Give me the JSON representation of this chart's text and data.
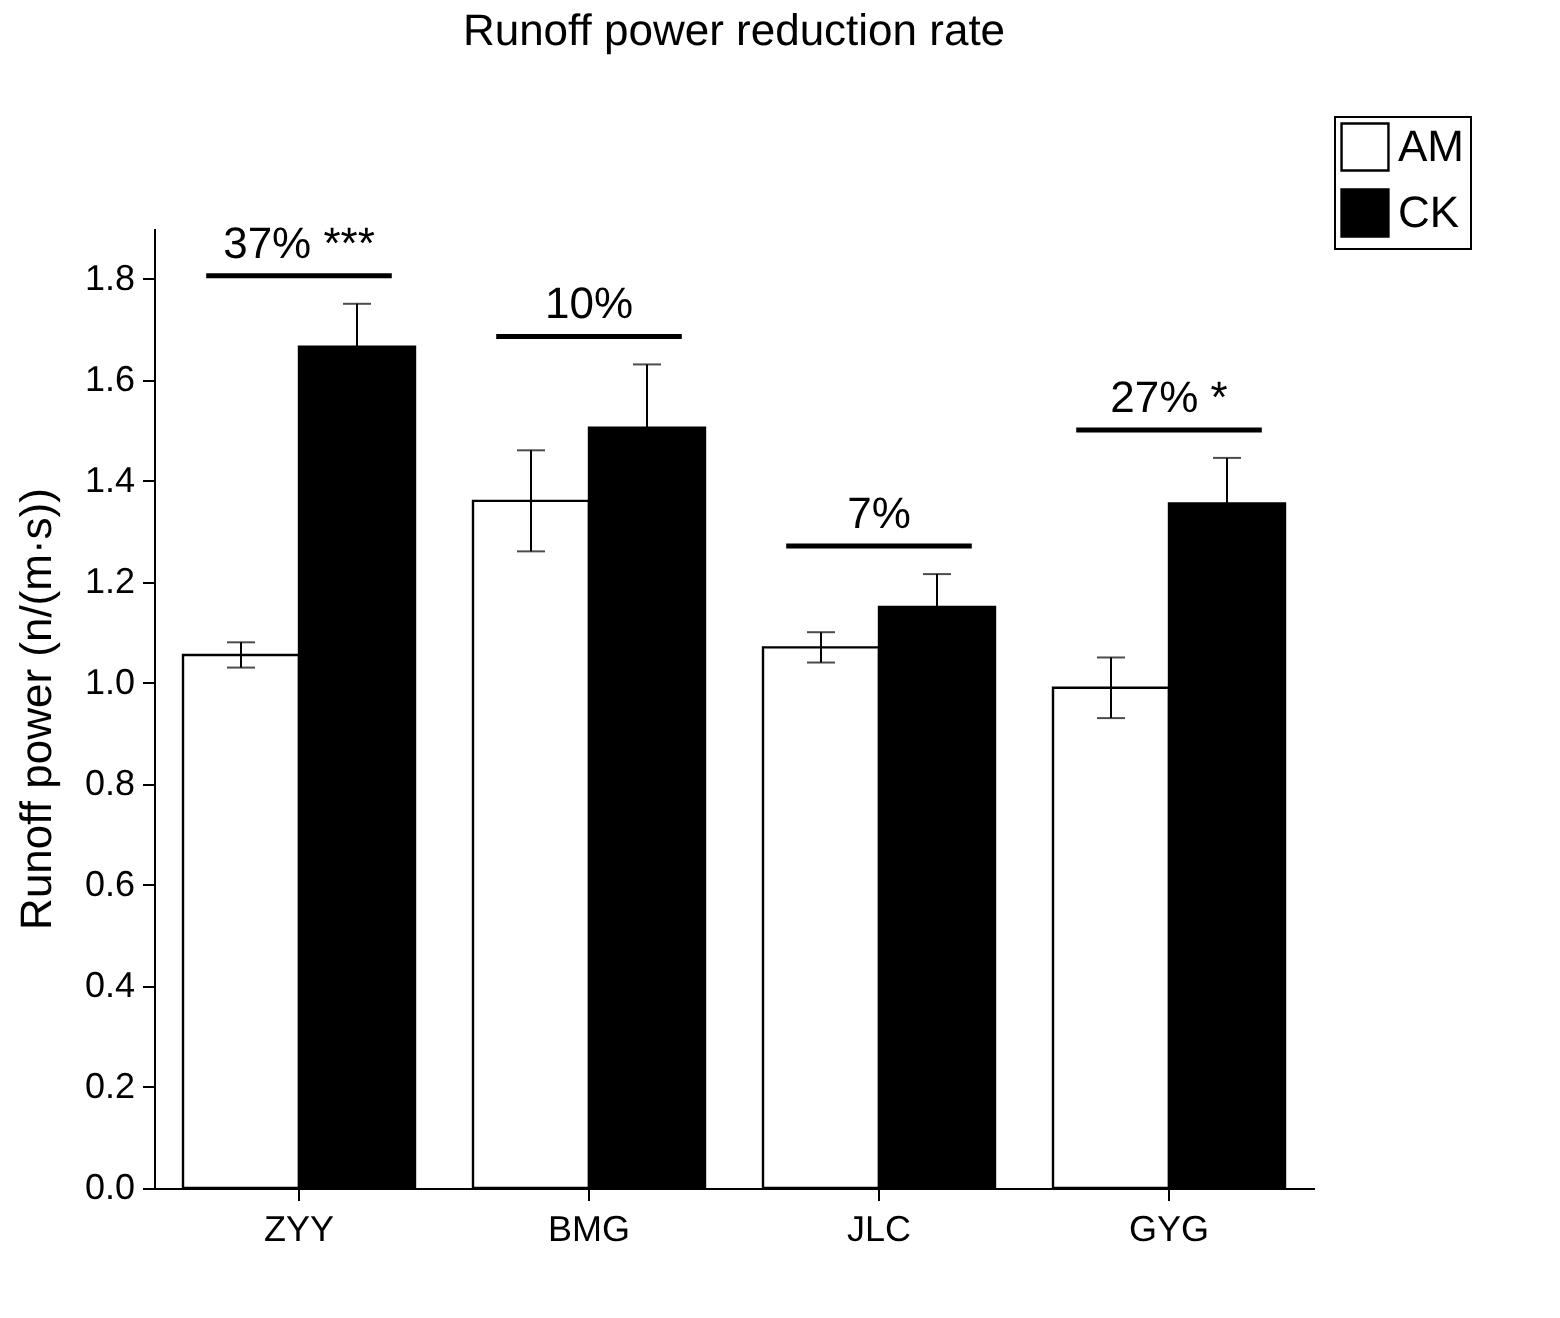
{
  "chart_data": {
    "type": "bar",
    "title": "Runoff power reduction rate",
    "ylabel": "Runoff power (n/(m·s))",
    "categories": [
      "ZYY",
      "BMG",
      "JLC",
      "GYG"
    ],
    "series": [
      {
        "name": "AM",
        "color": "#ffffff",
        "values": [
          1.055,
          1.36,
          1.07,
          0.99
        ],
        "errors": [
          0.025,
          0.1,
          0.03,
          0.06
        ]
      },
      {
        "name": "CK",
        "color": "#000000",
        "values": [
          1.665,
          1.505,
          1.15,
          1.355
        ],
        "errors": [
          0.085,
          0.125,
          0.065,
          0.09
        ]
      }
    ],
    "ylim": [
      0,
      1.9
    ],
    "yticks": [
      {
        "value": 0,
        "label": "0.0"
      },
      0.2,
      0.4,
      0.6,
      0.8,
      {
        "value": 1,
        "label": "1.0"
      },
      1.2,
      1.4,
      1.6,
      1.8
    ],
    "annotations": [
      "37% ***",
      "10%",
      "7%",
      "27% *"
    ],
    "legend": "top right",
    "grid": false
  }
}
